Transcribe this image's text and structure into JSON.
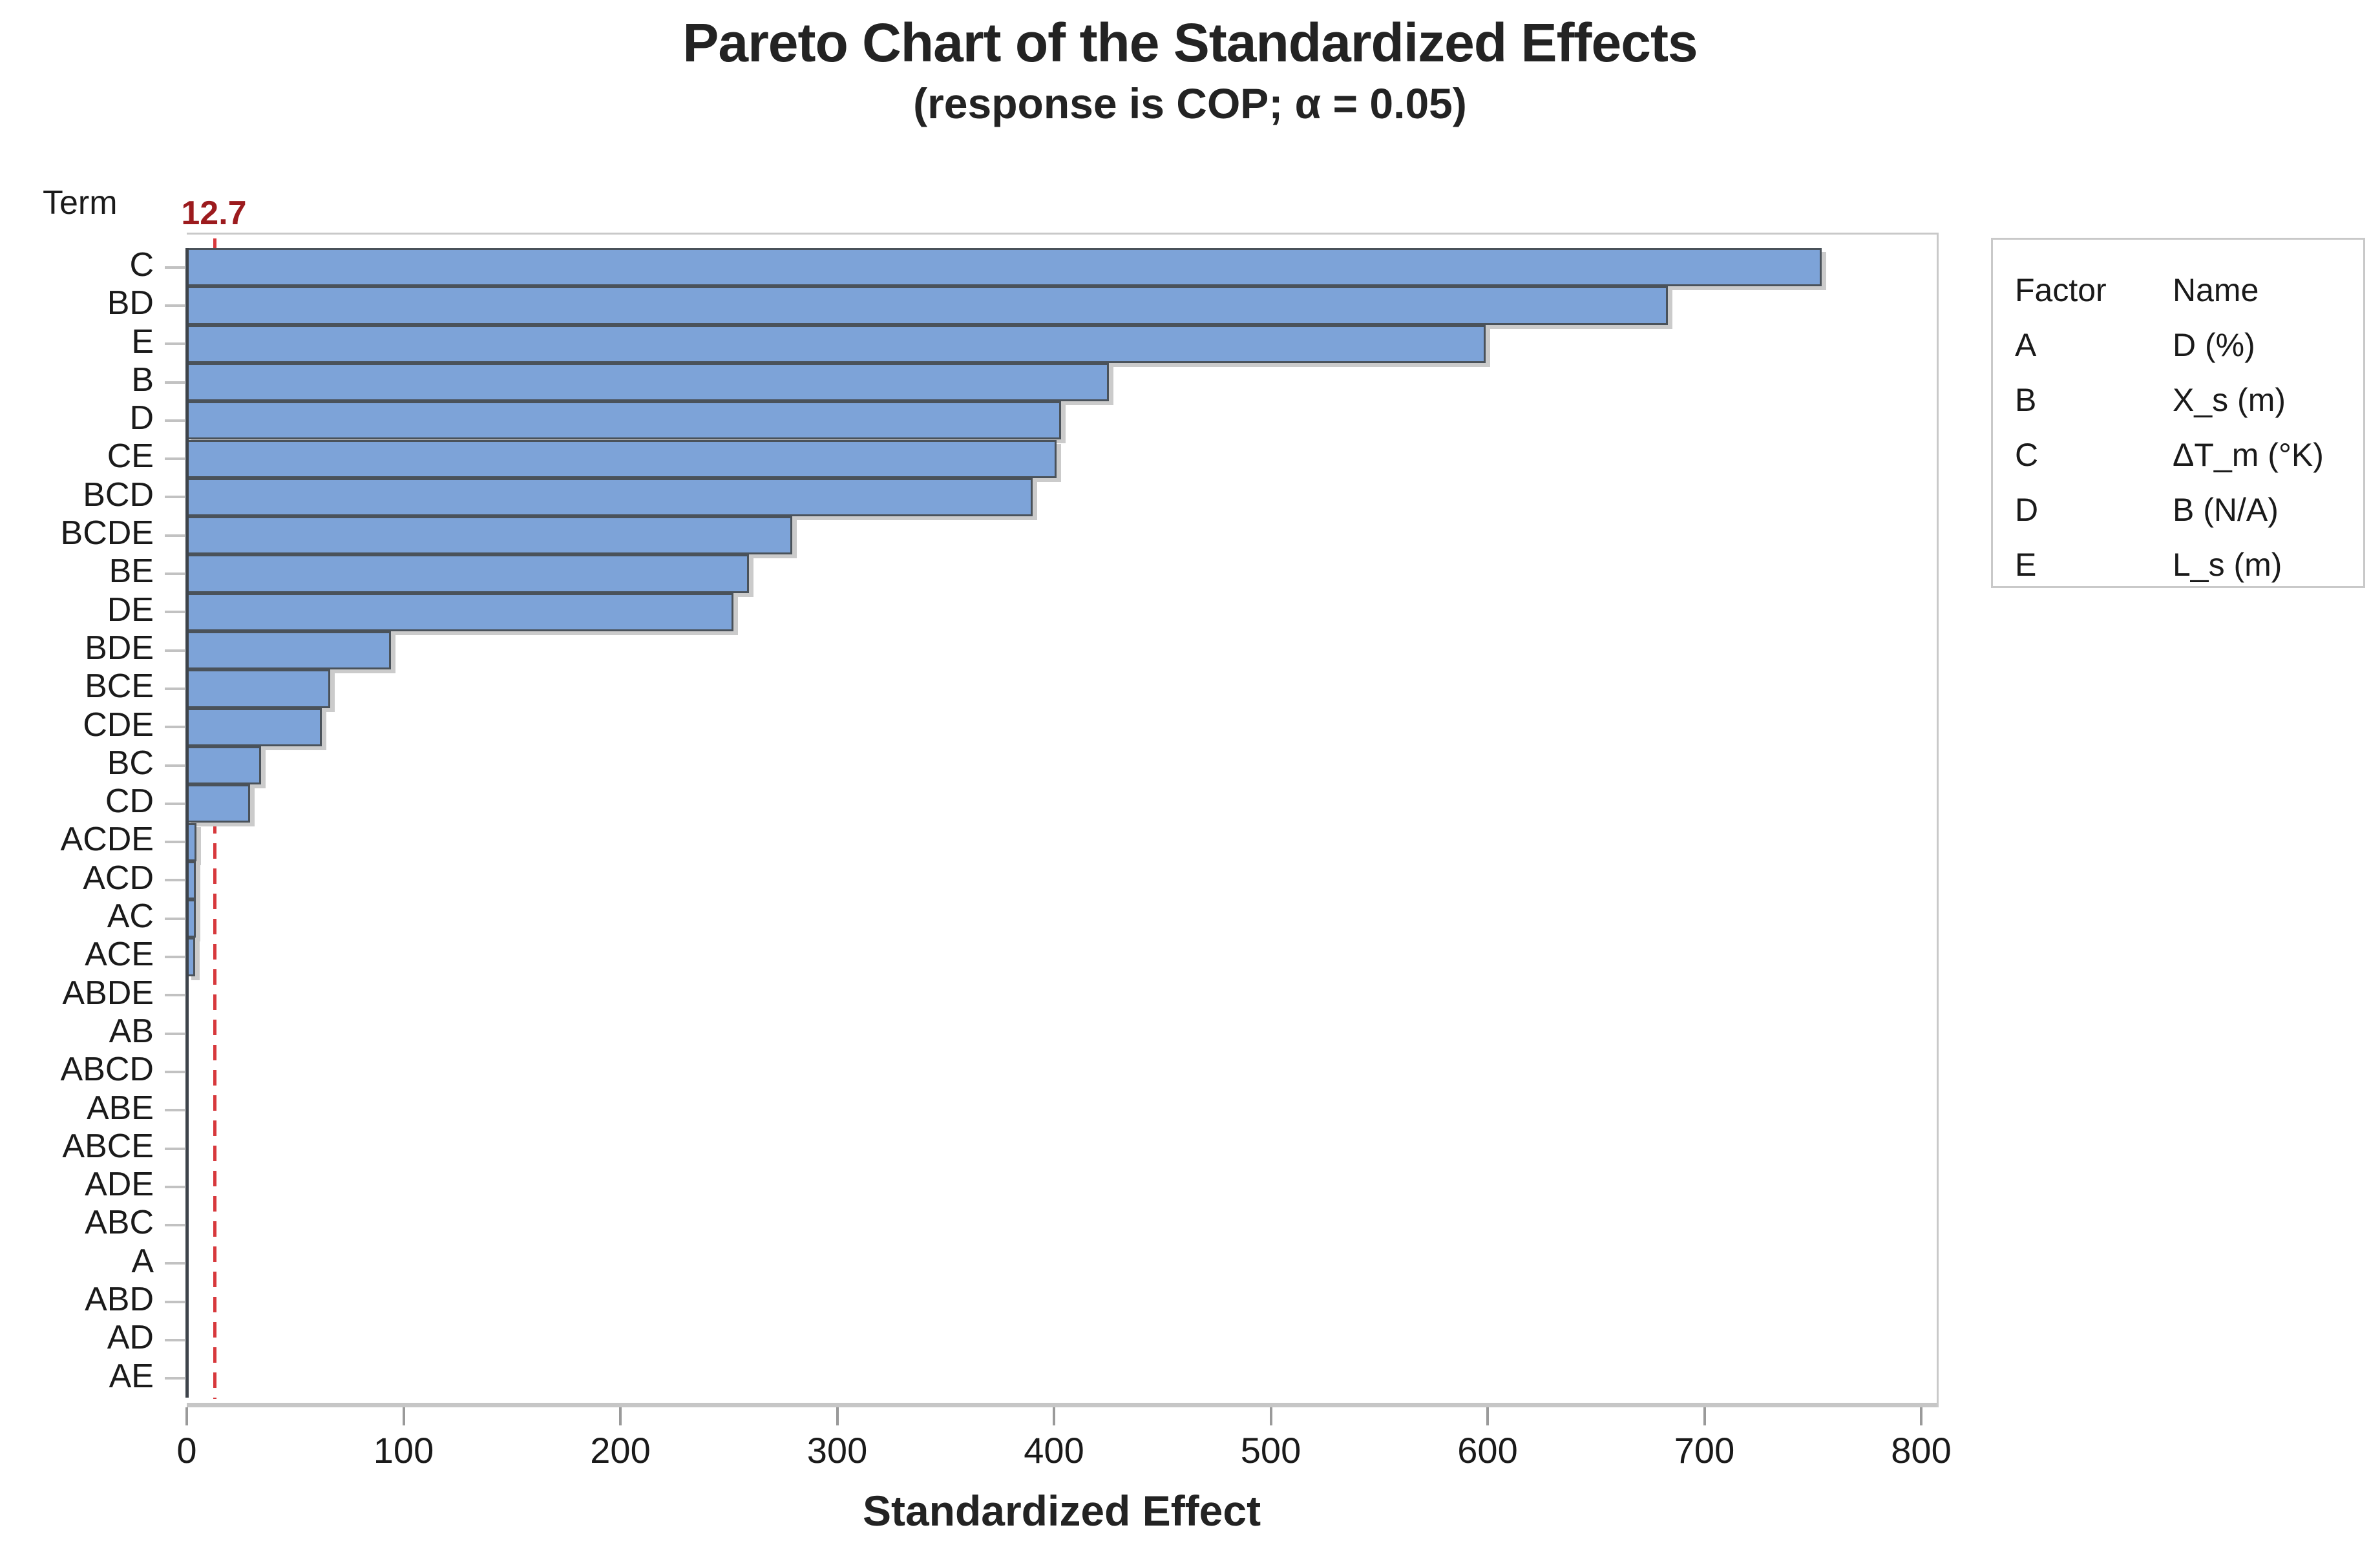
{
  "chart_data": {
    "type": "bar",
    "orientation": "horizontal",
    "title": "Pareto Chart of the Standardized Effects",
    "subtitle": "(response is COP; α = 0.05)",
    "xlabel": "Standardized Effect",
    "ylabel": "Term",
    "xlim": [
      0,
      800
    ],
    "x_ticks": [
      0,
      100,
      200,
      300,
      400,
      500,
      600,
      700,
      800
    ],
    "grid": false,
    "legend_position": "right",
    "reference_line": {
      "value": 12.7,
      "label": "12.7"
    },
    "categories": [
      "C",
      "BD",
      "E",
      "B",
      "D",
      "CE",
      "BCD",
      "BCDE",
      "BE",
      "DE",
      "BDE",
      "BCE",
      "CDE",
      "BC",
      "CD",
      "ACDE",
      "ACD",
      "AC",
      "ACE",
      "ABDE",
      "AB",
      "ABCD",
      "ABE",
      "ABCE",
      "ADE",
      "ABC",
      "A",
      "ABD",
      "AD",
      "AE"
    ],
    "values": [
      753,
      682,
      598,
      424,
      402,
      400,
      389,
      278,
      258,
      251,
      93,
      65,
      61,
      33,
      28,
      3.4,
      3.1,
      2.9,
      2.7,
      0.9,
      0.8,
      0.8,
      0.7,
      0.6,
      0.6,
      0.5,
      0.4,
      0.3,
      0.3,
      0.2
    ],
    "colors": {
      "bar_fill": "#7da3d8",
      "bar_border": "#4a525a",
      "bar_shadow": "#cbcbcb",
      "reference_line": "#d7383c",
      "reference_label": "#9c1b1e",
      "axis_line": "#3e444b",
      "frame": "#c9c9c9"
    }
  },
  "legend": {
    "headers": [
      "Factor",
      "Name"
    ],
    "rows": [
      {
        "factor": "A",
        "name": "D (%)"
      },
      {
        "factor": "B",
        "name": "X_s (m)"
      },
      {
        "factor": "C",
        "name": "ΔT_m (°K)"
      },
      {
        "factor": "D",
        "name": "B (N/A)"
      },
      {
        "factor": "E",
        "name": "L_s (m)"
      }
    ]
  }
}
